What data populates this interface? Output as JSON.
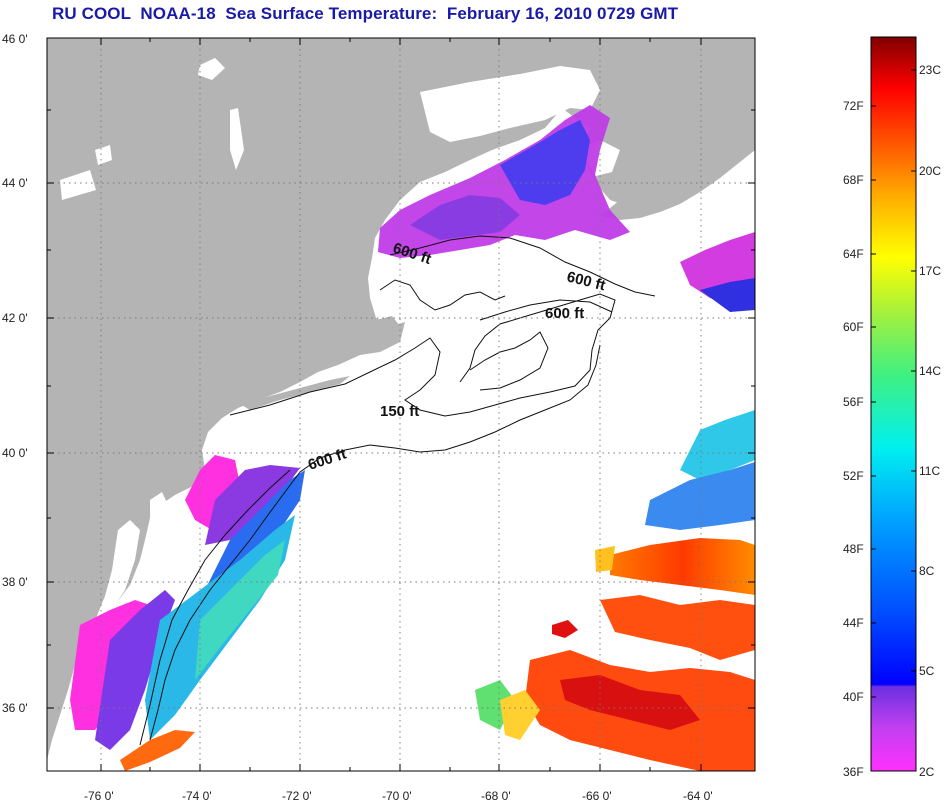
{
  "title": "RU COOL  NOAA-18  Sea Surface Temperature:  February 16, 2010 0729 GMT",
  "axes": {
    "lat_labels": [
      "46 0'",
      "44 0'",
      "42 0'",
      "40 0'",
      "38 0'",
      "36 0'"
    ],
    "lon_labels": [
      "-76 0'",
      "-74 0'",
      "-72 0'",
      "-70 0'",
      "-68 0'",
      "-66 0'",
      "-64 0'"
    ]
  },
  "contours": {
    "c1": "600 ft",
    "c2": "600 ft",
    "c3": "600 ft",
    "c4": "150 ft",
    "c5": "600 ft"
  },
  "colorbar": {
    "fahrenheit": [
      "72F",
      "68F",
      "64F",
      "60F",
      "56F",
      "52F",
      "48F",
      "44F",
      "40F",
      "36F"
    ],
    "celsius": [
      "23C",
      "20C",
      "17C",
      "14C",
      "11C",
      "8C",
      "5C",
      "2C"
    ]
  },
  "colors": {
    "land": "#b4b4b4",
    "ocean_cloud": "#ffffff",
    "title": "#1a1aa8"
  }
}
